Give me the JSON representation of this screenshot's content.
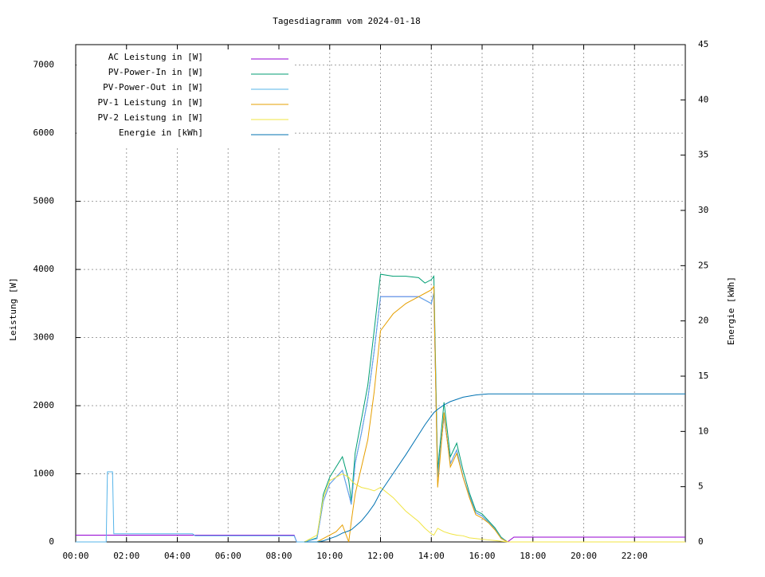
{
  "chart_data": {
    "type": "line",
    "title": "Tagesdiagramm vom 2024-01-18",
    "y_label": "Leistung [W]",
    "y2_label": "Energie [kWh]",
    "x": [
      0,
      1.2,
      1.25,
      1.45,
      1.5,
      4.6,
      4.7,
      8.6,
      8.7,
      9.0,
      9.5,
      9.75,
      10,
      10.25,
      10.5,
      10.75,
      10.85,
      11,
      11.25,
      11.5,
      11.75,
      12,
      12.5,
      13,
      13.5,
      13.75,
      14,
      14.1,
      14.25,
      14.5,
      14.75,
      15,
      15.25,
      15.5,
      15.75,
      16,
      16.25,
      16.5,
      16.75,
      17,
      17.25,
      18,
      24
    ],
    "xlim": [
      0,
      24
    ],
    "xticks": [
      {
        "value": 0,
        "label": "00:00"
      },
      {
        "value": 2,
        "label": "02:00"
      },
      {
        "value": 4,
        "label": "04:00"
      },
      {
        "value": 6,
        "label": "06:00"
      },
      {
        "value": 8,
        "label": "08:00"
      },
      {
        "value": 10,
        "label": "10:00"
      },
      {
        "value": 12,
        "label": "12:00"
      },
      {
        "value": 14,
        "label": "14:00"
      },
      {
        "value": 16,
        "label": "16:00"
      },
      {
        "value": 18,
        "label": "18:00"
      },
      {
        "value": 20,
        "label": "20:00"
      },
      {
        "value": 22,
        "label": "22:00"
      }
    ],
    "ylim": [
      0,
      7300
    ],
    "yticks": [
      0,
      1000,
      2000,
      3000,
      4000,
      5000,
      6000,
      7000
    ],
    "y2lim": [
      0,
      45
    ],
    "y2ticks": [
      0,
      5,
      10,
      15,
      20,
      25,
      30,
      35,
      40,
      45
    ],
    "grid": true,
    "legend": "upper left",
    "series": [
      {
        "name": "AC Leistung in [W]",
        "color": "#9400d3",
        "values": [
          100,
          100,
          100,
          100,
          100,
          100,
          100,
          100,
          0,
          0,
          50,
          600,
          850,
          950,
          1050,
          700,
          550,
          1150,
          1600,
          2100,
          2800,
          3600,
          3600,
          3600,
          3600,
          3550,
          3500,
          3650,
          950,
          1850,
          1150,
          1350,
          950,
          680,
          430,
          380,
          290,
          190,
          60,
          0,
          70,
          70,
          70
        ]
      },
      {
        "name": "PV-Power-In in [W]",
        "color": "#009e73",
        "values": [
          null,
          null,
          null,
          null,
          null,
          null,
          null,
          null,
          null,
          0,
          60,
          700,
          950,
          1100,
          1250,
          900,
          600,
          1300,
          1800,
          2300,
          3100,
          3930,
          3900,
          3900,
          3880,
          3800,
          3850,
          3900,
          1050,
          2050,
          1250,
          1450,
          1050,
          720,
          460,
          410,
          310,
          210,
          70,
          0,
          0,
          0,
          0
        ]
      },
      {
        "name": "PV-Power-Out in [W]",
        "color": "#56b4e9",
        "values": [
          0,
          0,
          1030,
          1030,
          120,
          120,
          90,
          90,
          0,
          0,
          50,
          600,
          850,
          950,
          1050,
          700,
          550,
          1150,
          1600,
          2100,
          2800,
          3600,
          3600,
          3600,
          3600,
          3550,
          3500,
          3650,
          950,
          1850,
          1150,
          1350,
          950,
          680,
          430,
          380,
          290,
          190,
          60,
          0,
          0,
          0,
          0
        ]
      },
      {
        "name": "PV-1 Leistung in [W]",
        "color": "#e69f00",
        "values": [
          null,
          null,
          null,
          null,
          null,
          null,
          null,
          null,
          null,
          0,
          0,
          50,
          100,
          150,
          250,
          0,
          300,
          700,
          1100,
          1500,
          2200,
          3100,
          3350,
          3500,
          3600,
          3650,
          3700,
          3750,
          800,
          1900,
          1100,
          1300,
          950,
          650,
          400,
          350,
          280,
          180,
          50,
          0,
          0,
          0,
          0
        ]
      },
      {
        "name": "PV-2 Leistung in [W]",
        "color": "#f0e442",
        "values": [
          null,
          null,
          null,
          null,
          null,
          null,
          null,
          null,
          null,
          0,
          100,
          650,
          900,
          950,
          1000,
          950,
          900,
          850,
          800,
          780,
          750,
          800,
          650,
          450,
          300,
          200,
          120,
          100,
          200,
          150,
          120,
          100,
          90,
          60,
          50,
          40,
          30,
          20,
          10,
          0,
          0,
          0,
          0
        ]
      },
      {
        "name": "Energie in [kWh]",
        "color": "#0072b2",
        "axis": "y2",
        "values": [
          null,
          null,
          null,
          null,
          null,
          null,
          null,
          null,
          null,
          0,
          0,
          0.1,
          0.3,
          0.5,
          0.8,
          1.0,
          1.1,
          1.4,
          1.9,
          2.6,
          3.4,
          4.5,
          6.2,
          7.9,
          9.7,
          10.6,
          11.4,
          11.7,
          12.0,
          12.4,
          12.7,
          12.9,
          13.1,
          13.2,
          13.3,
          13.35,
          13.4,
          13.4,
          13.4,
          13.4,
          13.4,
          13.4,
          13.4
        ]
      }
    ]
  }
}
